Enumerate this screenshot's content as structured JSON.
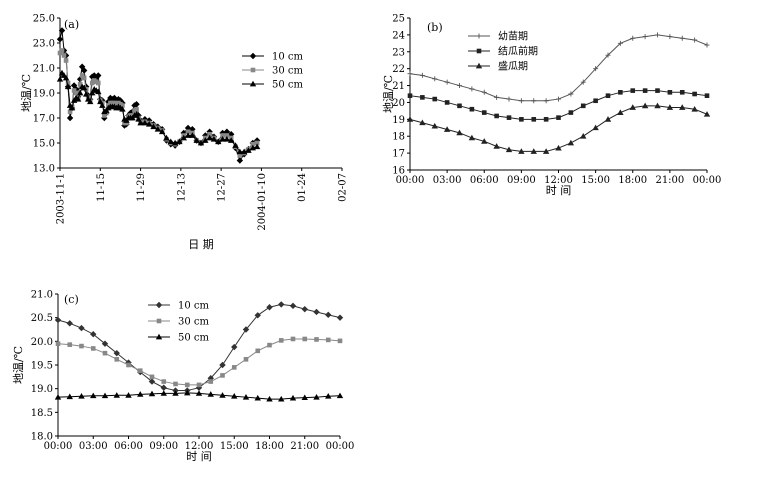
{
  "chart_data": [
    {
      "type": "line",
      "panel_label": "(a)",
      "ylabel": "地温/℃",
      "xlabel": "日  期",
      "ylim": [
        13.0,
        25.0
      ],
      "yticks": [
        "25.0",
        "23.0",
        "21.0",
        "19.0",
        "17.0",
        "15.0",
        "13.0"
      ],
      "xticks": [
        "2003-11-1",
        "11-15",
        "11-29",
        "12-13",
        "12-27",
        "2004-01-10",
        "01-24",
        "02-07"
      ],
      "xtick_days": [
        0,
        14,
        28,
        42,
        56,
        70,
        84,
        98
      ],
      "legend": "top-right",
      "series": [
        {
          "name": "10 cm",
          "marker": "diamond",
          "color": "#000000",
          "values": [
            23.3,
            24.0,
            22.4,
            22.0,
            19.5,
            17.0,
            17.8,
            19.6,
            19.3,
            18.7,
            20.1,
            21.1,
            20.8,
            19.5,
            18.8,
            18.5,
            20.3,
            20.4,
            20.2,
            20.4,
            18.5,
            18.4,
            17.0,
            17.4,
            18.3,
            18.6,
            18.5,
            18.6,
            18.4,
            18.5,
            18.4,
            18.2,
            16.4,
            16.5,
            17.2,
            17.4,
            17.5,
            18.0,
            18.1,
            17.2,
            16.8,
            16.9,
            16.8,
            16.5,
            16.3,
            16.1,
            15.2,
            14.9,
            14.8,
            15.1,
            15.8,
            16.2,
            16.1,
            15.2,
            15.0,
            15.6,
            15.9,
            15.5,
            15.1,
            15.8,
            15.9,
            15.7,
            14.6,
            13.6,
            14.1,
            14.5,
            15.0,
            15.2
          ],
          "x": [
            0,
            0.7,
            1.4,
            2.1,
            2.8,
            3.5,
            4.2,
            4.9,
            5.6,
            6.3,
            7.0,
            7.7,
            8.4,
            9.1,
            9.8,
            10.5,
            11.2,
            11.9,
            12.6,
            13.3,
            14.0,
            14.7,
            15.4,
            16.1,
            16.8,
            17.5,
            18.2,
            18.9,
            19.6,
            20.3,
            21.0,
            21.7,
            22.4,
            23.1,
            23.8,
            24.5,
            25.2,
            25.9,
            26.6,
            27.3,
            28.0,
            29.5,
            31.0,
            32.5,
            34.0,
            35.5,
            37.0,
            38.5,
            40.0,
            41.5,
            43.0,
            44.5,
            46.0,
            47.5,
            49.0,
            50.5,
            52.0,
            53.5,
            55.0,
            56.5,
            58.0,
            59.5,
            61.0,
            62.5,
            64.0,
            65.5,
            67.0,
            68.5
          ]
        },
        {
          "name": "30 cm",
          "marker": "square",
          "color": "#888888",
          "values": [
            22.2,
            22.4,
            22.0,
            21.6,
            19.8,
            17.5,
            17.9,
            19.2,
            19.0,
            18.6,
            19.7,
            20.4,
            20.2,
            19.3,
            18.7,
            18.4,
            19.8,
            20.0,
            19.9,
            19.8,
            18.4,
            18.2,
            17.2,
            17.4,
            18.0,
            18.2,
            18.2,
            18.2,
            18.1,
            18.2,
            18.1,
            18.0,
            16.6,
            16.6,
            17.1,
            17.2,
            17.2,
            17.6,
            17.7,
            17.0,
            16.7,
            16.7,
            16.6,
            16.4,
            16.2,
            16.0,
            15.3,
            15.0,
            14.9,
            15.1,
            15.6,
            15.9,
            15.8,
            15.2,
            15.0,
            15.4,
            15.7,
            15.4,
            15.1,
            15.6,
            15.6,
            15.4,
            14.7,
            14.0,
            14.2,
            14.5,
            14.9,
            15.0
          ],
          "x": [
            0,
            0.7,
            1.4,
            2.1,
            2.8,
            3.5,
            4.2,
            4.9,
            5.6,
            6.3,
            7.0,
            7.7,
            8.4,
            9.1,
            9.8,
            10.5,
            11.2,
            11.9,
            12.6,
            13.3,
            14.0,
            14.7,
            15.4,
            16.1,
            16.8,
            17.5,
            18.2,
            18.9,
            19.6,
            20.3,
            21.0,
            21.7,
            22.4,
            23.1,
            23.8,
            24.5,
            25.2,
            25.9,
            26.6,
            27.3,
            28.0,
            29.5,
            31.0,
            32.5,
            34.0,
            35.5,
            37.0,
            38.5,
            40.0,
            41.5,
            43.0,
            44.5,
            46.0,
            47.5,
            49.0,
            50.5,
            52.0,
            53.5,
            55.0,
            56.5,
            58.0,
            59.5,
            61.0,
            62.5,
            64.0,
            65.5,
            67.0,
            68.5
          ]
        },
        {
          "name": "50 cm",
          "marker": "triangle",
          "color": "#000000",
          "values": [
            20.1,
            20.6,
            20.4,
            20.2,
            19.5,
            18.0,
            17.8,
            18.4,
            18.6,
            18.5,
            19.0,
            19.5,
            19.4,
            18.9,
            18.5,
            18.3,
            19.0,
            19.3,
            19.2,
            19.1,
            18.3,
            18.0,
            17.5,
            17.6,
            17.8,
            17.9,
            17.9,
            17.9,
            17.8,
            17.9,
            17.8,
            17.7,
            16.9,
            16.8,
            17.0,
            17.0,
            17.0,
            17.2,
            17.3,
            16.9,
            16.6,
            16.6,
            16.5,
            16.3,
            16.1,
            15.9,
            15.4,
            15.1,
            15.0,
            15.1,
            15.4,
            15.6,
            15.6,
            15.2,
            15.0,
            15.2,
            15.4,
            15.3,
            15.1,
            15.3,
            15.3,
            15.2,
            14.8,
            14.3,
            14.3,
            14.4,
            14.6,
            14.7
          ],
          "x": [
            0,
            0.7,
            1.4,
            2.1,
            2.8,
            3.5,
            4.2,
            4.9,
            5.6,
            6.3,
            7.0,
            7.7,
            8.4,
            9.1,
            9.8,
            10.5,
            11.2,
            11.9,
            12.6,
            13.3,
            14.0,
            14.7,
            15.4,
            16.1,
            16.8,
            17.5,
            18.2,
            18.9,
            19.6,
            20.3,
            21.0,
            21.7,
            22.4,
            23.1,
            23.8,
            24.5,
            25.2,
            25.9,
            26.6,
            27.3,
            28.0,
            29.5,
            31.0,
            32.5,
            34.0,
            35.5,
            37.0,
            38.5,
            40.0,
            41.5,
            43.0,
            44.5,
            46.0,
            47.5,
            49.0,
            50.5,
            52.0,
            53.5,
            55.0,
            56.5,
            58.0,
            59.5,
            61.0,
            62.5,
            64.0,
            65.5,
            67.0,
            68.5
          ]
        }
      ]
    },
    {
      "type": "line",
      "panel_label": "(b)",
      "ylabel": "地温/℃",
      "xlabel": "时  间",
      "ylim": [
        16,
        25
      ],
      "yticks": [
        "25",
        "24",
        "23",
        "22",
        "21",
        "20",
        "19",
        "18",
        "17",
        "16"
      ],
      "xticks": [
        "00:00",
        "03:00",
        "06:00",
        "09:00",
        "12:00",
        "15:00",
        "18:00",
        "21:00",
        "00:00"
      ],
      "x_hours": [
        0,
        1,
        2,
        3,
        4,
        5,
        6,
        7,
        8,
        9,
        10,
        11,
        12,
        13,
        14,
        15,
        16,
        17,
        18,
        19,
        20,
        21,
        22,
        23,
        24
      ],
      "legend": "top-right",
      "series": [
        {
          "name": "幼苗期",
          "marker": "cross",
          "values": [
            21.7,
            21.6,
            21.4,
            21.2,
            21.0,
            20.8,
            20.6,
            20.3,
            20.2,
            20.1,
            20.1,
            20.1,
            20.2,
            20.5,
            21.2,
            22.0,
            22.8,
            23.5,
            23.8,
            23.9,
            24.0,
            23.9,
            23.8,
            23.7,
            23.4
          ]
        },
        {
          "name": "结瓜前期",
          "marker": "square",
          "values": [
            20.4,
            20.3,
            20.2,
            20.0,
            19.8,
            19.6,
            19.4,
            19.2,
            19.1,
            19.0,
            19.0,
            19.0,
            19.1,
            19.4,
            19.8,
            20.1,
            20.4,
            20.6,
            20.7,
            20.7,
            20.7,
            20.6,
            20.6,
            20.5,
            20.4
          ]
        },
        {
          "name": "盛瓜期",
          "marker": "triangle",
          "values": [
            19.0,
            18.8,
            18.6,
            18.4,
            18.2,
            17.9,
            17.7,
            17.4,
            17.2,
            17.1,
            17.1,
            17.1,
            17.3,
            17.6,
            18.0,
            18.5,
            19.0,
            19.4,
            19.7,
            19.8,
            19.8,
            19.7,
            19.7,
            19.6,
            19.3
          ]
        }
      ]
    },
    {
      "type": "line",
      "panel_label": "(c)",
      "ylabel": "地温/℃",
      "xlabel": "时  间",
      "ylim": [
        18.0,
        21.0
      ],
      "yticks": [
        "21.0",
        "20.5",
        "20.0",
        "19.5",
        "19.0",
        "18.5",
        "18.0"
      ],
      "xticks": [
        "00:00",
        "03:00",
        "06:00",
        "09:00",
        "12:00",
        "15:00",
        "18:00",
        "21:00",
        "00:00"
      ],
      "x_hours": [
        0,
        1,
        2,
        3,
        4,
        5,
        6,
        7,
        8,
        9,
        10,
        11,
        12,
        13,
        14,
        15,
        16,
        17,
        18,
        19,
        20,
        21,
        22,
        23,
        24
      ],
      "legend": "top",
      "series": [
        {
          "name": "10 cm",
          "marker": "diamond",
          "values": [
            20.45,
            20.38,
            20.28,
            20.15,
            19.95,
            19.75,
            19.55,
            19.35,
            19.15,
            19.02,
            18.96,
            18.96,
            19.02,
            19.22,
            19.5,
            19.88,
            20.25,
            20.55,
            20.72,
            20.78,
            20.75,
            20.68,
            20.62,
            20.56,
            20.5
          ]
        },
        {
          "name": "30 cm",
          "marker": "square",
          "values": [
            19.95,
            19.93,
            19.9,
            19.85,
            19.75,
            19.62,
            19.5,
            19.38,
            19.25,
            19.15,
            19.1,
            19.08,
            19.08,
            19.15,
            19.28,
            19.45,
            19.62,
            19.8,
            19.92,
            20.02,
            20.05,
            20.05,
            20.04,
            20.03,
            20.01
          ]
        },
        {
          "name": "50 cm",
          "marker": "triangle",
          "values": [
            18.82,
            18.83,
            18.84,
            18.85,
            18.85,
            18.86,
            18.86,
            18.88,
            18.89,
            18.9,
            18.9,
            18.91,
            18.9,
            18.88,
            18.86,
            18.84,
            18.82,
            18.8,
            18.78,
            18.78,
            18.8,
            18.81,
            18.82,
            18.84,
            18.85
          ]
        }
      ]
    }
  ]
}
